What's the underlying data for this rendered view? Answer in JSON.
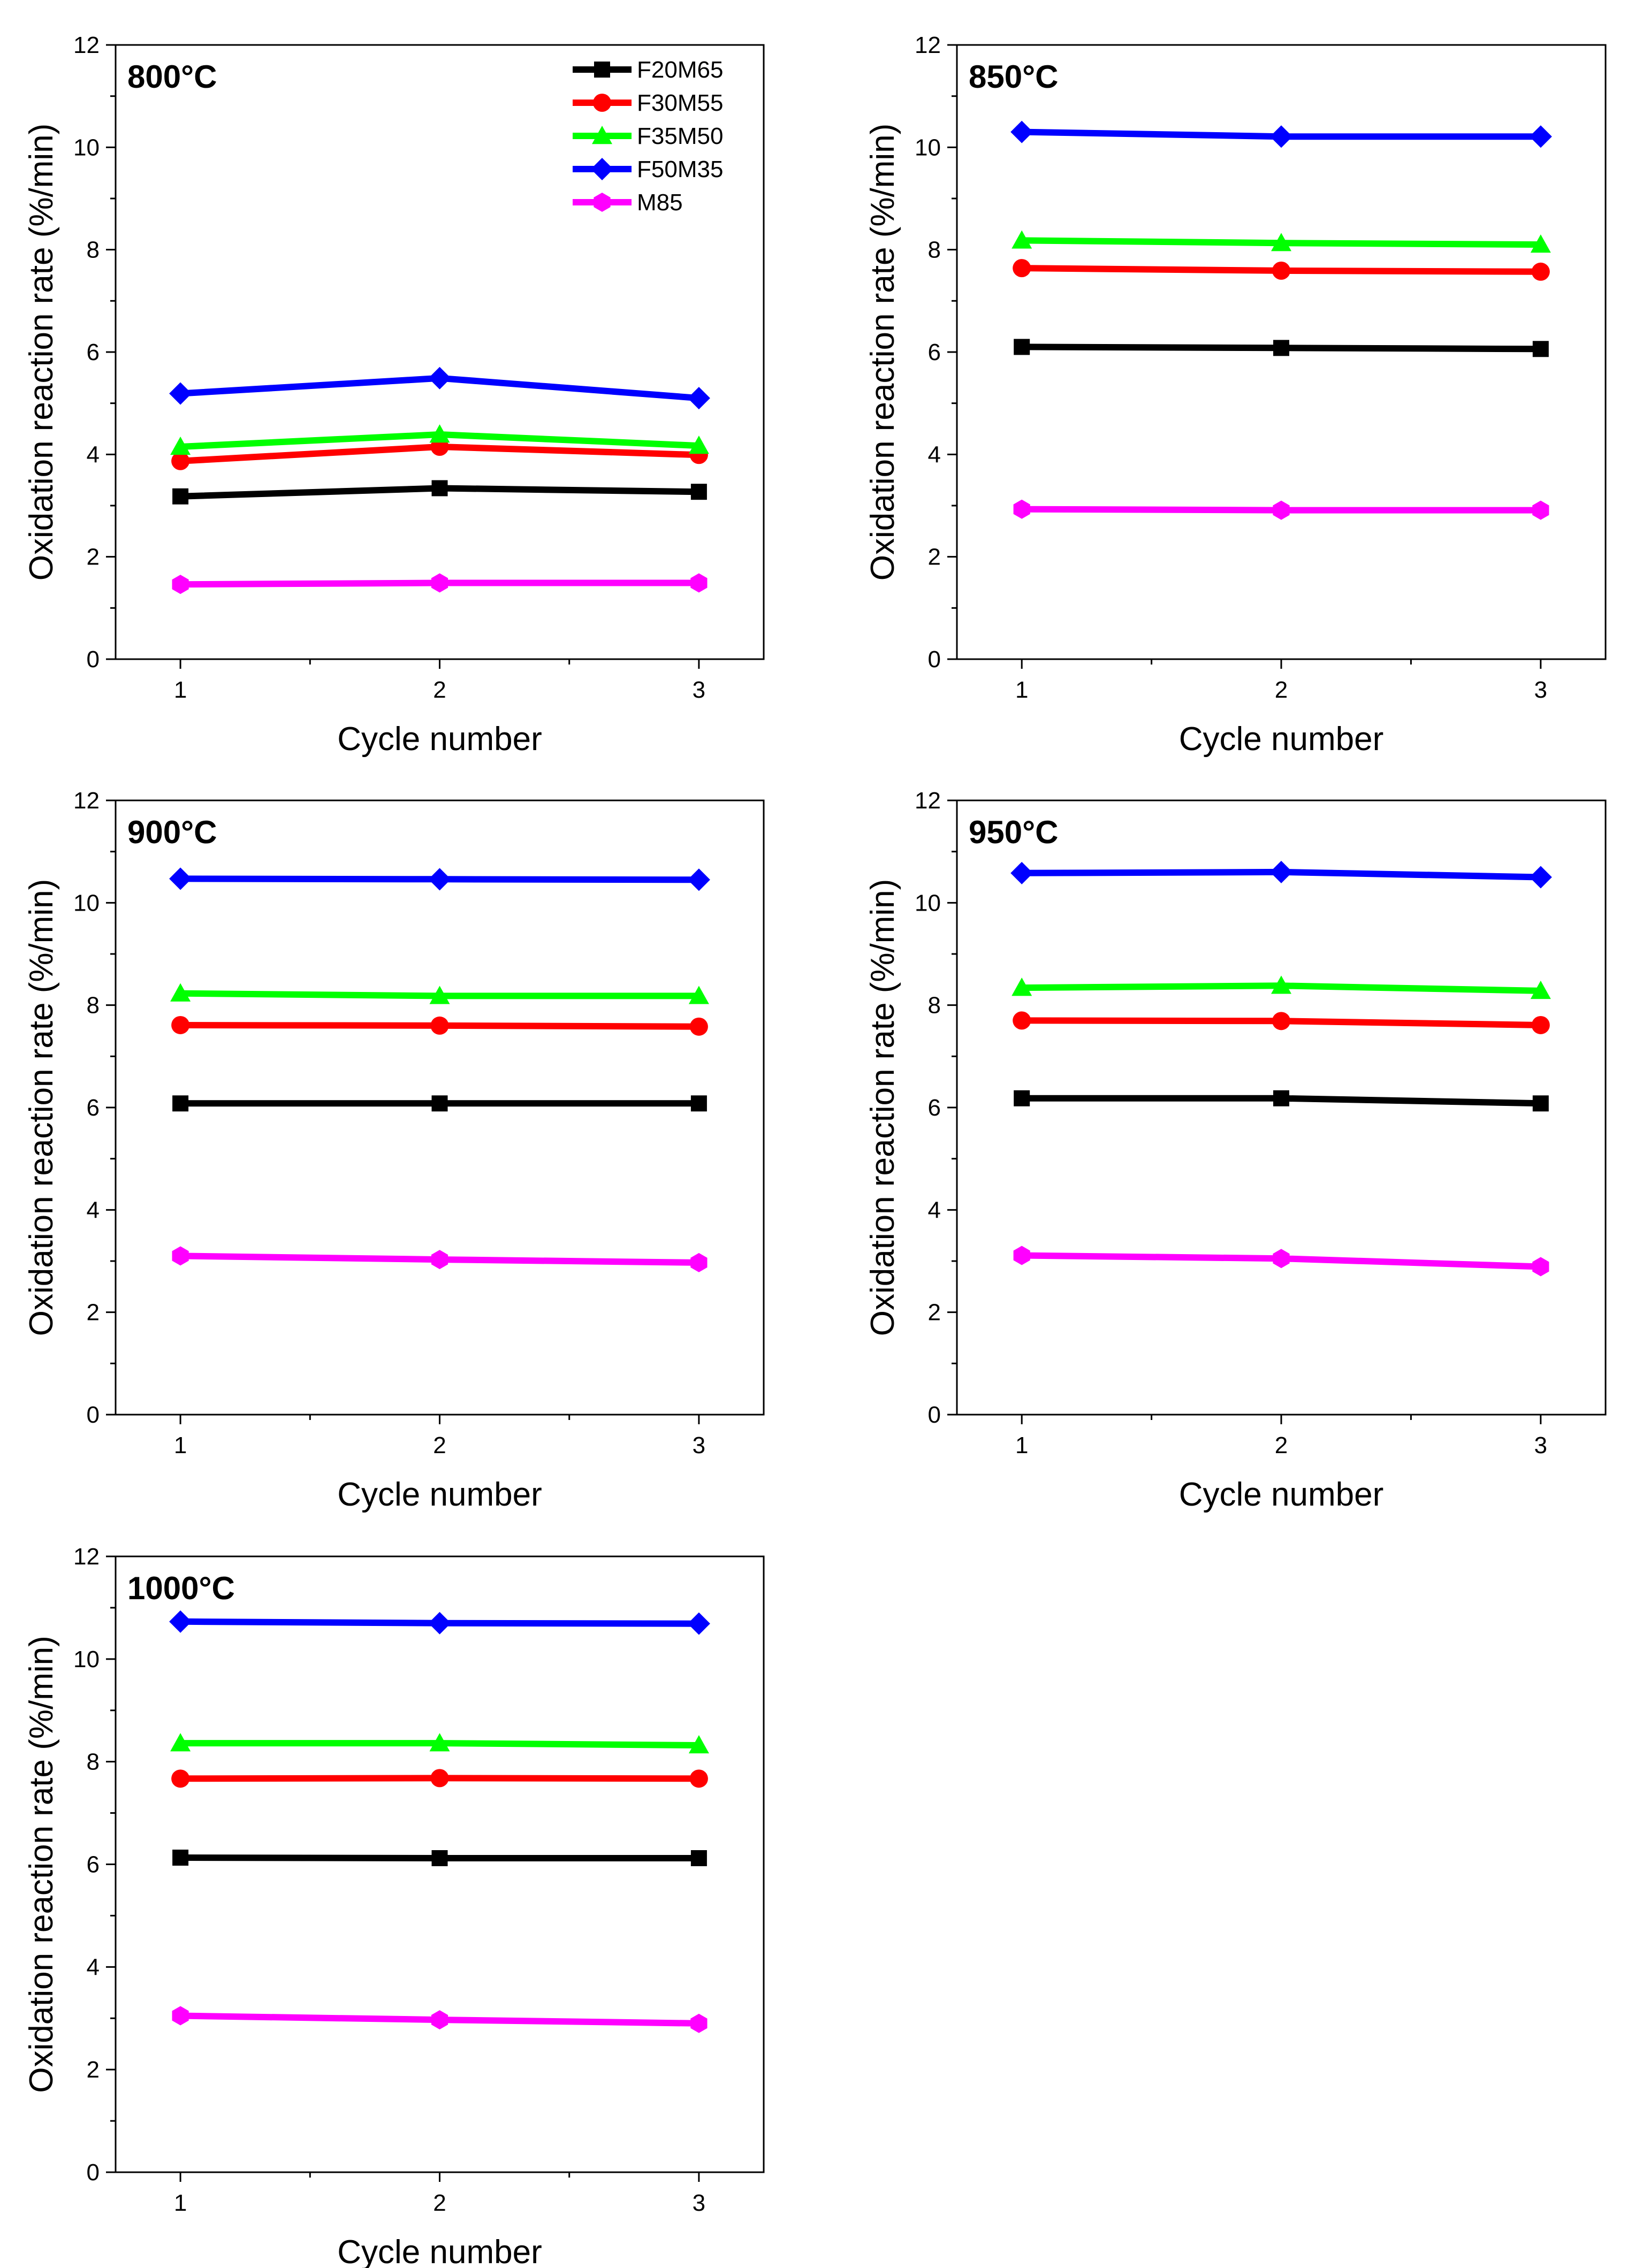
{
  "chart_data": [
    {
      "type": "line",
      "title": "800°C",
      "xlabel": "Cycle number",
      "ylabel": "Oxidation reaction rate (%/min)",
      "x": [
        1,
        2,
        3
      ],
      "x_tick_labels": [
        "1",
        "2",
        "3"
      ],
      "xlim": [
        0.75,
        3.25
      ],
      "ylim": [
        0,
        12
      ],
      "y_tick_labels": [
        "0",
        "2",
        "4",
        "6",
        "8",
        "10",
        "12"
      ],
      "legend": true,
      "legend_position": "top-right",
      "series": [
        {
          "name": "F20M65",
          "color": "#000000",
          "marker": "square",
          "values": [
            3.18,
            3.34,
            3.27
          ]
        },
        {
          "name": "F30M55",
          "color": "#ff0000",
          "marker": "circle",
          "values": [
            3.87,
            4.15,
            3.99
          ]
        },
        {
          "name": "F35M50",
          "color": "#00ff00",
          "marker": "triangle",
          "values": [
            4.15,
            4.39,
            4.17
          ]
        },
        {
          "name": "F50M35",
          "color": "#0000ff",
          "marker": "diamond",
          "values": [
            5.19,
            5.49,
            5.1
          ]
        },
        {
          "name": "M85",
          "color": "#ff00ff",
          "marker": "hexagon",
          "values": [
            1.46,
            1.49,
            1.49
          ]
        }
      ]
    },
    {
      "type": "line",
      "title": "850°C",
      "xlabel": "Cycle number",
      "ylabel": "Oxidation reaction rate (%/min)",
      "x": [
        1,
        2,
        3
      ],
      "x_tick_labels": [
        "1",
        "2",
        "3"
      ],
      "xlim": [
        0.75,
        3.25
      ],
      "ylim": [
        0,
        12
      ],
      "y_tick_labels": [
        "0",
        "2",
        "4",
        "6",
        "8",
        "10",
        "12"
      ],
      "legend": false,
      "series": [
        {
          "name": "F20M65",
          "color": "#000000",
          "marker": "square",
          "values": [
            6.1,
            6.08,
            6.06
          ]
        },
        {
          "name": "F30M55",
          "color": "#ff0000",
          "marker": "circle",
          "values": [
            7.64,
            7.59,
            7.57
          ]
        },
        {
          "name": "F35M50",
          "color": "#00ff00",
          "marker": "triangle",
          "values": [
            8.18,
            8.13,
            8.1
          ]
        },
        {
          "name": "F50M35",
          "color": "#0000ff",
          "marker": "diamond",
          "values": [
            10.3,
            10.21,
            10.21
          ]
        },
        {
          "name": "M85",
          "color": "#ff00ff",
          "marker": "hexagon",
          "values": [
            2.93,
            2.91,
            2.91
          ]
        }
      ]
    },
    {
      "type": "line",
      "title": "900°C",
      "xlabel": "Cycle number",
      "ylabel": "Oxidation reaction rate (%/min)",
      "x": [
        1,
        2,
        3
      ],
      "x_tick_labels": [
        "1",
        "2",
        "3"
      ],
      "xlim": [
        0.75,
        3.25
      ],
      "ylim": [
        0,
        12
      ],
      "y_tick_labels": [
        "0",
        "2",
        "4",
        "6",
        "8",
        "10",
        "12"
      ],
      "legend": false,
      "series": [
        {
          "name": "F20M65",
          "color": "#000000",
          "marker": "square",
          "values": [
            6.08,
            6.08,
            6.08
          ]
        },
        {
          "name": "F30M55",
          "color": "#ff0000",
          "marker": "circle",
          "values": [
            7.61,
            7.6,
            7.58
          ]
        },
        {
          "name": "F35M50",
          "color": "#00ff00",
          "marker": "triangle",
          "values": [
            8.23,
            8.18,
            8.18
          ]
        },
        {
          "name": "F50M35",
          "color": "#0000ff",
          "marker": "diamond",
          "values": [
            10.47,
            10.46,
            10.45
          ]
        },
        {
          "name": "M85",
          "color": "#ff00ff",
          "marker": "hexagon",
          "values": [
            3.1,
            3.03,
            2.97
          ]
        }
      ]
    },
    {
      "type": "line",
      "title": "950°C",
      "xlabel": "Cycle number",
      "ylabel": "Oxidation reaction rate (%/min)",
      "x": [
        1,
        2,
        3
      ],
      "x_tick_labels": [
        "1",
        "2",
        "3"
      ],
      "xlim": [
        0.75,
        3.25
      ],
      "ylim": [
        0,
        12
      ],
      "y_tick_labels": [
        "0",
        "2",
        "4",
        "6",
        "8",
        "10",
        "12"
      ],
      "legend": false,
      "series": [
        {
          "name": "F20M65",
          "color": "#000000",
          "marker": "square",
          "values": [
            6.18,
            6.18,
            6.08
          ]
        },
        {
          "name": "F30M55",
          "color": "#ff0000",
          "marker": "circle",
          "values": [
            7.7,
            7.69,
            7.61
          ]
        },
        {
          "name": "F35M50",
          "color": "#00ff00",
          "marker": "triangle",
          "values": [
            8.34,
            8.38,
            8.28
          ]
        },
        {
          "name": "F50M35",
          "color": "#0000ff",
          "marker": "diamond",
          "values": [
            10.58,
            10.6,
            10.5
          ]
        },
        {
          "name": "M85",
          "color": "#ff00ff",
          "marker": "hexagon",
          "values": [
            3.11,
            3.05,
            2.89
          ]
        }
      ]
    },
    {
      "type": "line",
      "title": "1000°C",
      "xlabel": "Cycle number",
      "ylabel": "Oxidation reaction rate (%/min)",
      "x": [
        1,
        2,
        3
      ],
      "x_tick_labels": [
        "1",
        "2",
        "3"
      ],
      "xlim": [
        0.75,
        3.25
      ],
      "ylim": [
        0,
        12
      ],
      "y_tick_labels": [
        "0",
        "2",
        "4",
        "6",
        "8",
        "10",
        "12"
      ],
      "legend": false,
      "series": [
        {
          "name": "F20M65",
          "color": "#000000",
          "marker": "square",
          "values": [
            6.13,
            6.12,
            6.12
          ]
        },
        {
          "name": "F30M55",
          "color": "#ff0000",
          "marker": "circle",
          "values": [
            7.67,
            7.68,
            7.67
          ]
        },
        {
          "name": "F35M50",
          "color": "#00ff00",
          "marker": "triangle",
          "values": [
            8.36,
            8.36,
            8.32
          ]
        },
        {
          "name": "F50M35",
          "color": "#0000ff",
          "marker": "diamond",
          "values": [
            10.73,
            10.7,
            10.69
          ]
        },
        {
          "name": "M85",
          "color": "#ff00ff",
          "marker": "hexagon",
          "values": [
            3.05,
            2.97,
            2.9
          ]
        }
      ]
    }
  ]
}
